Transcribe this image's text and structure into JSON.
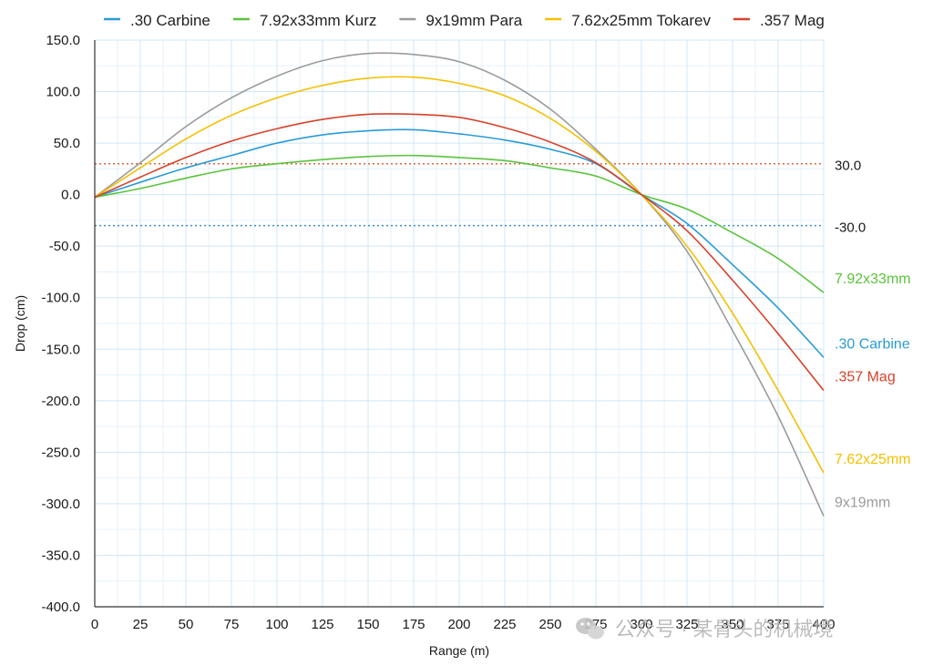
{
  "chart_data": {
    "type": "line",
    "xlabel": "Range (m)",
    "ylabel": "Drop (cm)",
    "xlim": [
      0,
      400
    ],
    "ylim": [
      -400,
      150
    ],
    "x_ticks": [
      "0",
      "25",
      "50",
      "75",
      "100",
      "125",
      "150",
      "175",
      "200",
      "225",
      "250",
      "275",
      "300",
      "325",
      "350",
      "375",
      "400"
    ],
    "y_ticks": [
      "150.0",
      "100.0",
      "50.0",
      "0.0",
      "-50.0",
      "-100.0",
      "-150.0",
      "-200.0",
      "-250.0",
      "-300.0",
      "-350.0",
      "-400.0"
    ],
    "grid": true,
    "legend_position": "top",
    "x": [
      0,
      25,
      50,
      75,
      100,
      125,
      150,
      175,
      200,
      225,
      250,
      275,
      300,
      325,
      350,
      375,
      400
    ],
    "series": [
      {
        "name": ".30 Carbine",
        "end_label": ".30 Carbine",
        "color": "#2a9bd8",
        "values": [
          -2.5,
          12,
          26,
          38,
          50,
          58,
          62,
          63,
          59,
          53,
          44,
          30,
          0,
          -28,
          -68,
          -110,
          -158
        ]
      },
      {
        "name": "7.92x33mm Kurz",
        "end_label": "7.92x33mm",
        "color": "#5ac33c",
        "values": [
          -2.5,
          6,
          16,
          25,
          30,
          34,
          37,
          38,
          36,
          33,
          26,
          18,
          0,
          -14,
          -37,
          -62,
          -95
        ]
      },
      {
        "name": "9x19mm Para",
        "end_label": "9x19mm",
        "color": "#9b9b9b",
        "values": [
          -2.5,
          31,
          66,
          94,
          115,
          130,
          137,
          136,
          129,
          111,
          83,
          44,
          0,
          -55,
          -132,
          -215,
          -312
        ]
      },
      {
        "name": "7.62x25mm Tokarev",
        "end_label": "7.62x25mm",
        "color": "#f5c000",
        "values": [
          -2.5,
          26,
          54,
          77,
          94,
          106,
          113,
          114,
          108,
          96,
          74,
          42,
          0,
          -50,
          -115,
          -190,
          -270
        ]
      },
      {
        "name": ".357 Mag",
        "end_label": ".357 Mag",
        "color": "#d9412a",
        "values": [
          -2.5,
          17,
          36,
          52,
          64,
          73,
          78,
          78,
          75,
          65,
          51,
          31,
          0,
          -35,
          -83,
          -135,
          -190
        ]
      }
    ],
    "reference_lines": [
      {
        "value": 30,
        "label": "30.0",
        "color": "#e0663f"
      },
      {
        "value": -30,
        "label": "-30.0",
        "color": "#3d8fd6"
      }
    ]
  },
  "watermark": {
    "icon": "wechat-icon",
    "text": "公众号 · 某骨头的机械境"
  }
}
